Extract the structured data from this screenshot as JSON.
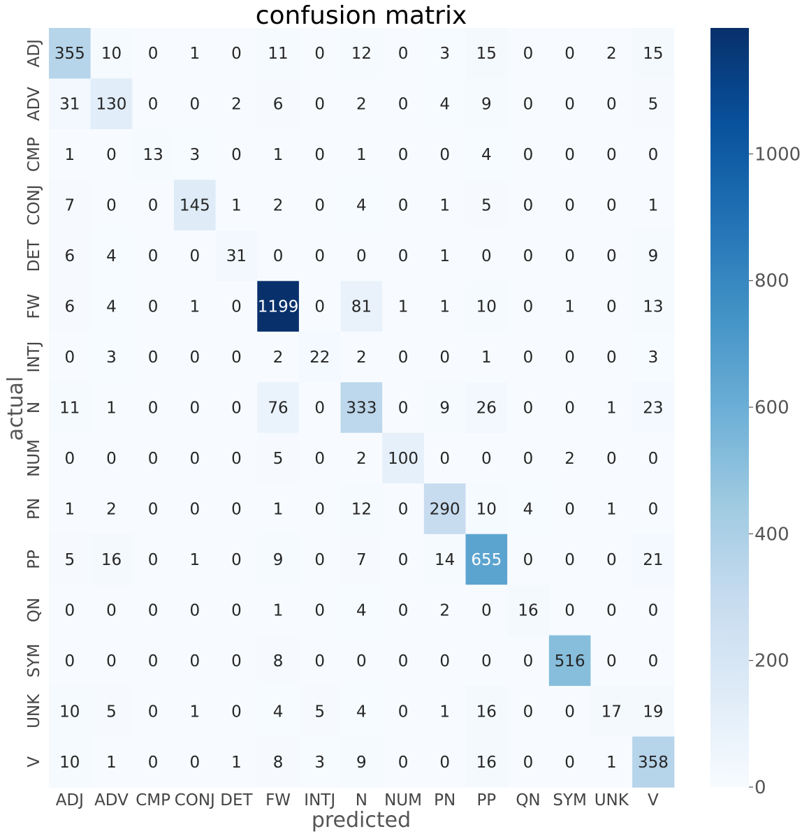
{
  "chart_data": {
    "type": "heatmap",
    "title": "confusion matrix",
    "xlabel": "predicted",
    "ylabel": "actual",
    "x_categories": [
      "ADJ",
      "ADV",
      "CMP",
      "CONJ",
      "DET",
      "FW",
      "INTJ",
      "N",
      "NUM",
      "PN",
      "PP",
      "QN",
      "SYM",
      "UNK",
      "V"
    ],
    "y_categories": [
      "ADJ",
      "ADV",
      "CMP",
      "CONJ",
      "DET",
      "FW",
      "INTJ",
      "N",
      "NUM",
      "PN",
      "PP",
      "QN",
      "SYM",
      "UNK",
      "V"
    ],
    "values": [
      [
        355,
        10,
        0,
        1,
        0,
        11,
        0,
        12,
        0,
        3,
        15,
        0,
        0,
        2,
        15
      ],
      [
        31,
        130,
        0,
        0,
        2,
        6,
        0,
        2,
        0,
        4,
        9,
        0,
        0,
        0,
        5
      ],
      [
        1,
        0,
        13,
        3,
        0,
        1,
        0,
        1,
        0,
        0,
        4,
        0,
        0,
        0,
        0
      ],
      [
        7,
        0,
        0,
        145,
        1,
        2,
        0,
        4,
        0,
        1,
        5,
        0,
        0,
        0,
        1
      ],
      [
        6,
        4,
        0,
        0,
        31,
        0,
        0,
        0,
        0,
        1,
        0,
        0,
        0,
        0,
        9
      ],
      [
        6,
        4,
        0,
        1,
        0,
        1199,
        0,
        81,
        1,
        1,
        10,
        0,
        1,
        0,
        13
      ],
      [
        0,
        3,
        0,
        0,
        0,
        2,
        22,
        2,
        0,
        0,
        1,
        0,
        0,
        0,
        3
      ],
      [
        11,
        1,
        0,
        0,
        0,
        76,
        0,
        333,
        0,
        9,
        26,
        0,
        0,
        1,
        23
      ],
      [
        0,
        0,
        0,
        0,
        0,
        5,
        0,
        2,
        100,
        0,
        0,
        0,
        2,
        0,
        0
      ],
      [
        1,
        2,
        0,
        0,
        0,
        1,
        0,
        12,
        0,
        290,
        10,
        4,
        0,
        1,
        0
      ],
      [
        5,
        16,
        0,
        1,
        0,
        9,
        0,
        7,
        0,
        14,
        655,
        0,
        0,
        0,
        21
      ],
      [
        0,
        0,
        0,
        0,
        0,
        1,
        0,
        4,
        0,
        2,
        0,
        16,
        0,
        0,
        0
      ],
      [
        0,
        0,
        0,
        0,
        0,
        8,
        0,
        0,
        0,
        0,
        0,
        0,
        516,
        0,
        0
      ],
      [
        10,
        5,
        0,
        1,
        0,
        4,
        5,
        4,
        0,
        1,
        16,
        0,
        0,
        17,
        19
      ],
      [
        10,
        1,
        0,
        0,
        1,
        8,
        3,
        9,
        0,
        0,
        16,
        0,
        0,
        1,
        358
      ]
    ],
    "colormap": "Blues",
    "vmin": 0,
    "vmax": 1199,
    "colorbar_ticks": [
      0,
      200,
      400,
      600,
      800,
      1000
    ],
    "annotate": true
  }
}
